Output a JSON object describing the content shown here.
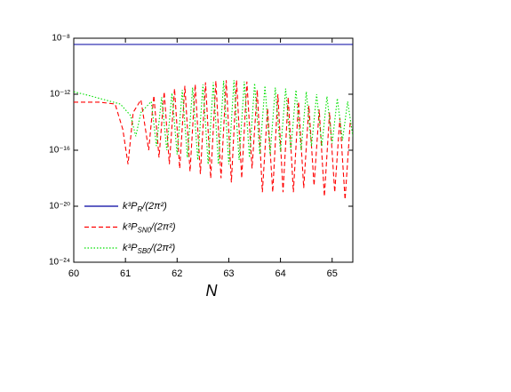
{
  "chart_data": {
    "type": "line",
    "x_label": "N",
    "xlim": [
      60,
      65.4
    ],
    "xticks": [
      60,
      61,
      62,
      63,
      64,
      65
    ],
    "ylim": [
      1e-24,
      1e-08
    ],
    "log_y": true,
    "yticks": [
      {
        "value": 1e-24,
        "label": "10⁻²⁴"
      },
      {
        "value": 1e-20,
        "label": "10⁻²⁰"
      },
      {
        "value": 1e-16,
        "label": "10⁻¹⁶"
      },
      {
        "value": 1e-12,
        "label": "10⁻¹²"
      },
      {
        "value": 1e-08,
        "label": "10⁻⁸"
      }
    ],
    "legend": "lower left",
    "series": [
      {
        "name": "k³P",
        "subscript": "R",
        "suffix": "/(2π²)",
        "color": "#0000a0",
        "dash": "solid",
        "x": [
          60,
          65.4
        ],
        "values": [
          3.6e-09,
          3.6e-09
        ]
      },
      {
        "name": "k³P",
        "subscript": "SN0",
        "suffix": "/(2π²)",
        "color": "#ff0000",
        "dash": "dashed",
        "x": [
          60,
          60.5,
          60.8,
          60.95,
          61.05,
          61.15,
          61.3,
          61.45,
          61.55,
          61.65,
          61.75,
          61.85,
          61.95,
          62.05,
          62.15,
          62.25,
          62.35,
          62.45,
          62.55,
          62.65,
          62.75,
          62.85,
          62.95,
          63.05,
          63.15,
          63.25,
          63.35,
          63.45,
          63.55,
          63.65,
          63.75,
          63.85,
          63.95,
          64.05,
          64.15,
          64.25,
          64.35,
          64.45,
          64.55,
          64.65,
          64.75,
          64.85,
          64.95,
          65.05,
          65.15,
          65.25,
          65.35
        ],
        "values": [
          2.7e-13,
          2.7e-13,
          2e-13,
          3e-15,
          1e-17,
          5e-14,
          4e-13,
          1e-16,
          8e-13,
          3e-17,
          1.5e-12,
          1e-17,
          2.5e-12,
          5e-18,
          4e-12,
          3e-18,
          5e-12,
          2e-18,
          7e-12,
          1e-18,
          9e-12,
          1e-18,
          1e-11,
          5e-19,
          1e-11,
          1e-18,
          8e-12,
          5e-18,
          2e-12,
          1e-19,
          1e-13,
          1e-19,
          1e-12,
          1e-19,
          6e-13,
          1e-19,
          3e-13,
          2e-19,
          1.5e-13,
          3e-19,
          8e-14,
          5e-20,
          5e-14,
          1e-19,
          2e-14,
          3e-20,
          1e-14
        ]
      },
      {
        "name": "k³P",
        "subscript": "SB0",
        "suffix": "/(2π²)",
        "color": "#00e000",
        "dash": "dotted",
        "x": [
          60,
          60.3,
          60.6,
          60.9,
          61.1,
          61.2,
          61.3,
          61.5,
          61.6,
          61.7,
          61.8,
          61.9,
          62.0,
          62.1,
          62.2,
          62.3,
          62.4,
          62.5,
          62.6,
          62.7,
          62.8,
          62.9,
          63.0,
          63.1,
          63.2,
          63.3,
          63.4,
          63.5,
          63.6,
          63.7,
          63.8,
          63.9,
          64.0,
          64.1,
          64.2,
          64.3,
          64.4,
          64.5,
          64.6,
          64.7,
          64.8,
          64.9,
          65.0,
          65.1,
          65.2,
          65.3,
          65.4
        ],
        "values": [
          1.5e-12,
          8e-13,
          4e-13,
          2e-13,
          3e-14,
          1e-15,
          5e-14,
          3e-13,
          2e-16,
          6e-13,
          1e-16,
          1.2e-12,
          5e-17,
          2e-12,
          3e-17,
          3e-12,
          2e-17,
          5e-12,
          1e-17,
          7e-12,
          1e-17,
          9e-12,
          1e-17,
          1e-11,
          2e-17,
          8e-12,
          3e-17,
          6e-12,
          5e-17,
          4e-12,
          5e-17,
          3e-12,
          8e-17,
          2.5e-12,
          1e-16,
          2e-12,
          1e-16,
          1.5e-12,
          2e-16,
          1e-12,
          2e-16,
          7e-13,
          3e-16,
          5e-13,
          5e-16,
          3e-13,
          1e-15
        ]
      }
    ]
  }
}
